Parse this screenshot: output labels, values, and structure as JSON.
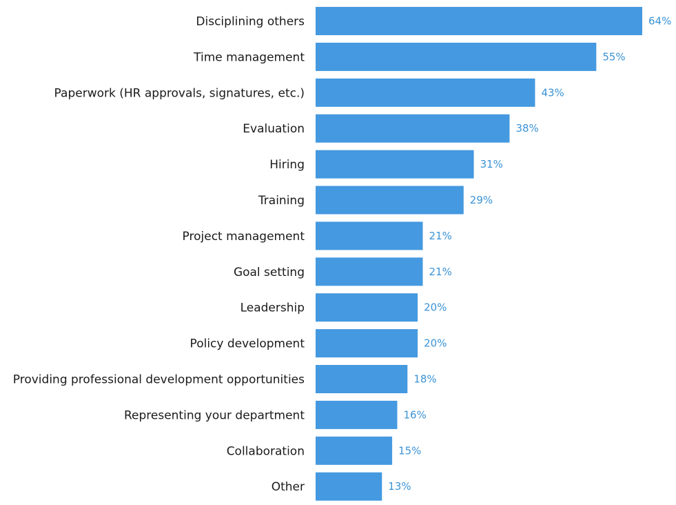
{
  "chart_data": {
    "type": "bar",
    "orientation": "horizontal",
    "categories": [
      "Disciplining others",
      "Time management",
      "Paperwork (HR approvals, signatures, etc.)",
      "Evaluation",
      "Hiring",
      "Training",
      "Project management",
      "Goal setting",
      "Leadership",
      "Policy development",
      "Providing professional development opportunities",
      "Representing your department",
      "Collaboration",
      "Other"
    ],
    "values": [
      64,
      55,
      43,
      38,
      31,
      29,
      21,
      21,
      20,
      20,
      18,
      16,
      15,
      13
    ],
    "value_labels": [
      "64%",
      "55%",
      "43%",
      "38%",
      "31%",
      "29%",
      "21%",
      "21%",
      "20%",
      "20%",
      "18%",
      "16%",
      "15%",
      "13%"
    ],
    "unit": "%",
    "title": "",
    "xlabel": "",
    "ylabel": "",
    "xlim": [
      0,
      64
    ],
    "grid": false,
    "legend": "none",
    "colors": {
      "bar": "#4499e0",
      "value_label": "#3a93d6",
      "category_label": "#1a1a1a"
    }
  }
}
